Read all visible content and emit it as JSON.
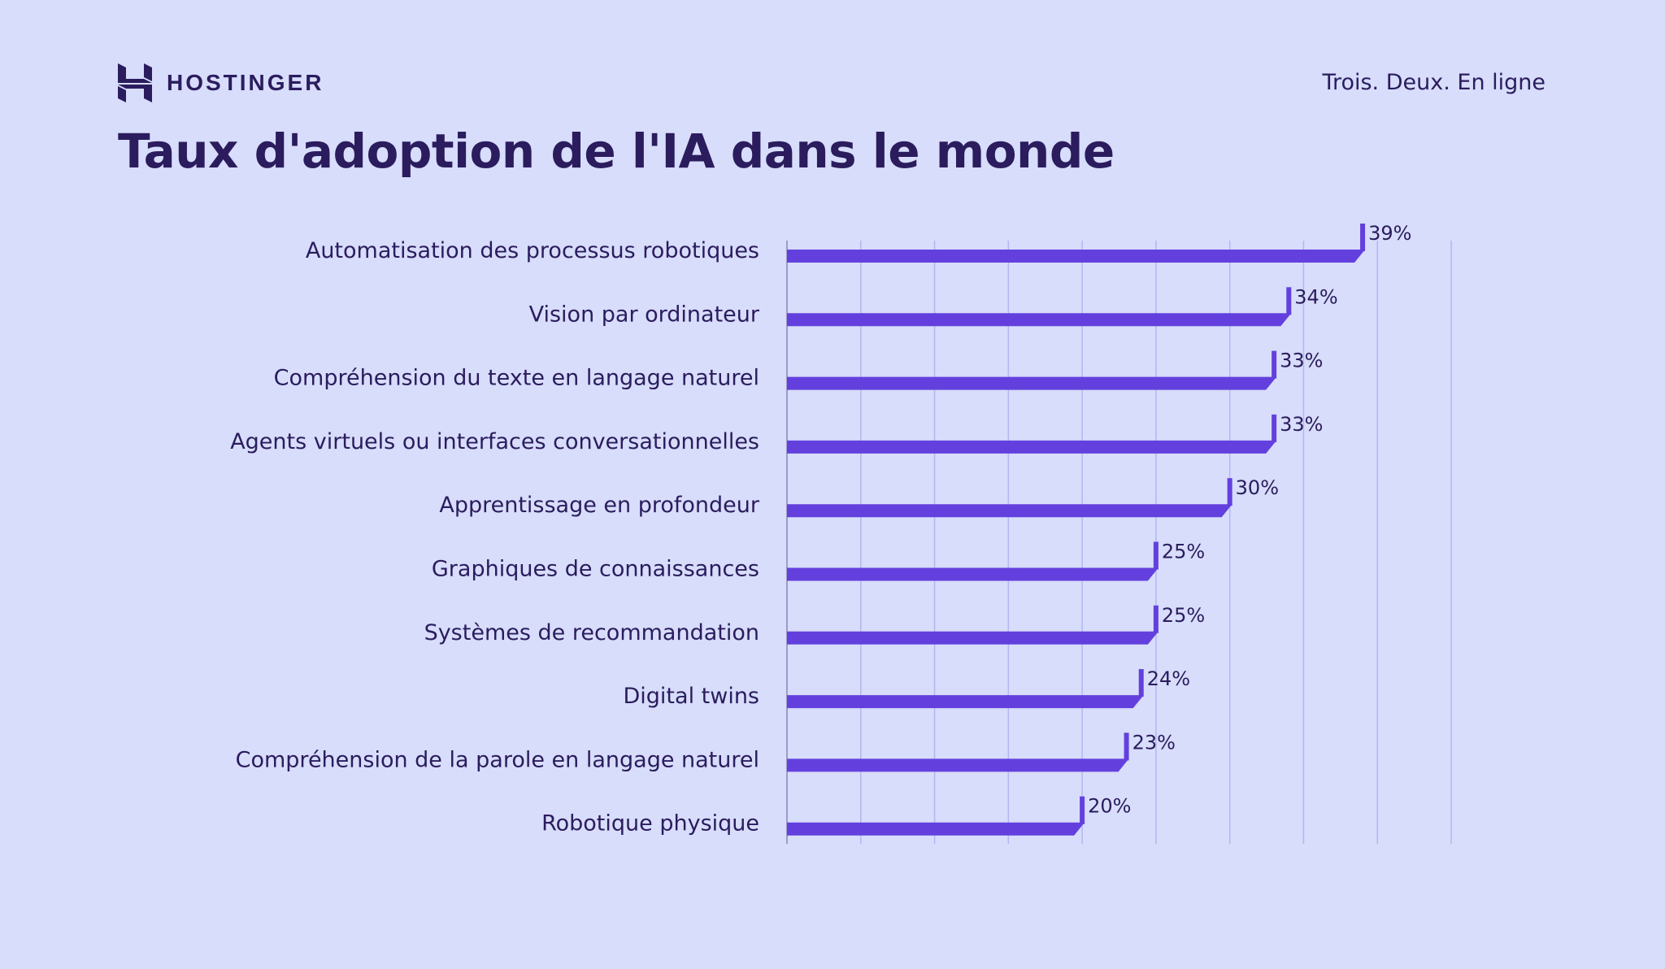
{
  "brand": {
    "name": "HOSTINGER",
    "tagline": "Trois. Deux. En ligne"
  },
  "colors": {
    "background": "#d7ddfa",
    "bar": "#6340dd",
    "text": "#2b1c5e",
    "grid": "#b4b6f2"
  },
  "chart_data": {
    "type": "bar",
    "orientation": "horizontal",
    "title": "Taux d'adoption de l'IA dans le monde",
    "categories": [
      "Automatisation des processus robotiques",
      "Vision par ordinateur",
      "Compréhension du texte en langage naturel",
      "Agents virtuels ou interfaces conversationnelles",
      "Apprentissage en profondeur",
      "Graphiques de connaissances",
      "Systèmes de recommandation",
      "Digital twins",
      "Compréhension de la parole en langage naturel",
      "Robotique physique"
    ],
    "values": [
      39,
      34,
      33,
      33,
      30,
      25,
      25,
      24,
      23,
      20
    ],
    "labels": [
      "39%",
      "34%",
      "33%",
      "33%",
      "30%",
      "25%",
      "25%",
      "24%",
      "23%",
      "20%"
    ],
    "unit": "%",
    "xlim": [
      0,
      45
    ],
    "grid_step": 5,
    "grid": true,
    "legend": "none"
  }
}
